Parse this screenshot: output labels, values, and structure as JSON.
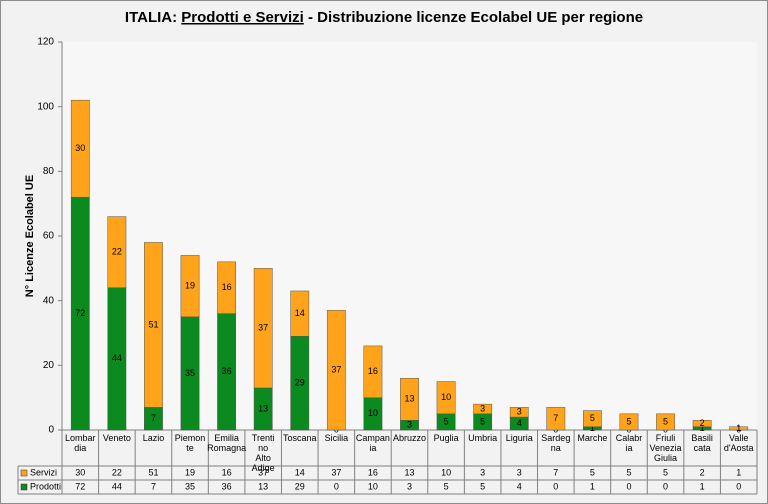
{
  "chart_data": {
    "type": "stacked_bar",
    "title": [
      "ITALIA:",
      "Prodotti e Servizi",
      "- Distribuzione licenze Ecolabel UE  per regione"
    ],
    "y_label": "N° Licenze Ecolabel  UE",
    "categories": [
      "Lombardia",
      "Veneto",
      "Lazio",
      "Piemonte",
      "Emilia Romagna",
      "Trentino Alto Adige",
      "Toscana",
      "Sicilia",
      "Campania",
      "Abruzzo",
      "Puglia",
      "Umbria",
      "Liguria",
      "Sardegna",
      "Marche",
      "Calabria",
      "Friuli Venezia Giulia",
      "Basilicata",
      "Valle d'Aosta"
    ],
    "series": [
      {
        "name": "Prodotti",
        "color": "#0b8a1f",
        "values": [
          72,
          44,
          7,
          35,
          36,
          13,
          29,
          0,
          10,
          3,
          5,
          5,
          4,
          0,
          1,
          0,
          0,
          1,
          0
        ]
      },
      {
        "name": "Servizi",
        "color": "#ffa31a",
        "values": [
          30,
          22,
          51,
          19,
          16,
          37,
          14,
          37,
          16,
          13,
          10,
          3,
          3,
          7,
          5,
          5,
          5,
          2,
          1
        ]
      }
    ],
    "ylim": [
      0,
      120
    ],
    "yticks": [
      0,
      20,
      40,
      60,
      80,
      100,
      120
    ]
  }
}
